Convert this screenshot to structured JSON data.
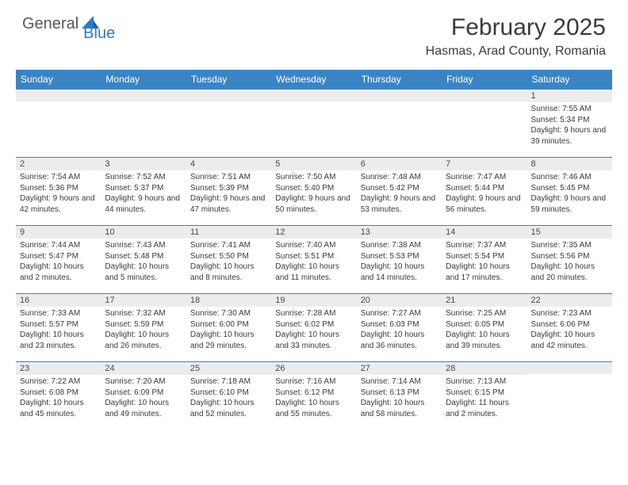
{
  "logo": {
    "text1": "General",
    "text2": "Blue"
  },
  "title": "February 2025",
  "location": "Hasmas, Arad County, Romania",
  "colors": {
    "header_bg": "#3b84c4",
    "header_text": "#ffffff",
    "daynum_bg": "#ececec",
    "border": "#3b84c4",
    "logo_gray": "#575757",
    "logo_blue": "#2f7ac0",
    "body_text": "#3a3a3a"
  },
  "weekdays": [
    "Sunday",
    "Monday",
    "Tuesday",
    "Wednesday",
    "Thursday",
    "Friday",
    "Saturday"
  ],
  "weeks": [
    [
      {
        "day": "",
        "lines": []
      },
      {
        "day": "",
        "lines": []
      },
      {
        "day": "",
        "lines": []
      },
      {
        "day": "",
        "lines": []
      },
      {
        "day": "",
        "lines": []
      },
      {
        "day": "",
        "lines": []
      },
      {
        "day": "1",
        "lines": [
          "Sunrise: 7:55 AM",
          "Sunset: 5:34 PM",
          "Daylight: 9 hours and 39 minutes."
        ]
      }
    ],
    [
      {
        "day": "2",
        "lines": [
          "Sunrise: 7:54 AM",
          "Sunset: 5:36 PM",
          "Daylight: 9 hours and 42 minutes."
        ]
      },
      {
        "day": "3",
        "lines": [
          "Sunrise: 7:52 AM",
          "Sunset: 5:37 PM",
          "Daylight: 9 hours and 44 minutes."
        ]
      },
      {
        "day": "4",
        "lines": [
          "Sunrise: 7:51 AM",
          "Sunset: 5:39 PM",
          "Daylight: 9 hours and 47 minutes."
        ]
      },
      {
        "day": "5",
        "lines": [
          "Sunrise: 7:50 AM",
          "Sunset: 5:40 PM",
          "Daylight: 9 hours and 50 minutes."
        ]
      },
      {
        "day": "6",
        "lines": [
          "Sunrise: 7:48 AM",
          "Sunset: 5:42 PM",
          "Daylight: 9 hours and 53 minutes."
        ]
      },
      {
        "day": "7",
        "lines": [
          "Sunrise: 7:47 AM",
          "Sunset: 5:44 PM",
          "Daylight: 9 hours and 56 minutes."
        ]
      },
      {
        "day": "8",
        "lines": [
          "Sunrise: 7:46 AM",
          "Sunset: 5:45 PM",
          "Daylight: 9 hours and 59 minutes."
        ]
      }
    ],
    [
      {
        "day": "9",
        "lines": [
          "Sunrise: 7:44 AM",
          "Sunset: 5:47 PM",
          "Daylight: 10 hours and 2 minutes."
        ]
      },
      {
        "day": "10",
        "lines": [
          "Sunrise: 7:43 AM",
          "Sunset: 5:48 PM",
          "Daylight: 10 hours and 5 minutes."
        ]
      },
      {
        "day": "11",
        "lines": [
          "Sunrise: 7:41 AM",
          "Sunset: 5:50 PM",
          "Daylight: 10 hours and 8 minutes."
        ]
      },
      {
        "day": "12",
        "lines": [
          "Sunrise: 7:40 AM",
          "Sunset: 5:51 PM",
          "Daylight: 10 hours and 11 minutes."
        ]
      },
      {
        "day": "13",
        "lines": [
          "Sunrise: 7:38 AM",
          "Sunset: 5:53 PM",
          "Daylight: 10 hours and 14 minutes."
        ]
      },
      {
        "day": "14",
        "lines": [
          "Sunrise: 7:37 AM",
          "Sunset: 5:54 PM",
          "Daylight: 10 hours and 17 minutes."
        ]
      },
      {
        "day": "15",
        "lines": [
          "Sunrise: 7:35 AM",
          "Sunset: 5:56 PM",
          "Daylight: 10 hours and 20 minutes."
        ]
      }
    ],
    [
      {
        "day": "16",
        "lines": [
          "Sunrise: 7:33 AM",
          "Sunset: 5:57 PM",
          "Daylight: 10 hours and 23 minutes."
        ]
      },
      {
        "day": "17",
        "lines": [
          "Sunrise: 7:32 AM",
          "Sunset: 5:59 PM",
          "Daylight: 10 hours and 26 minutes."
        ]
      },
      {
        "day": "18",
        "lines": [
          "Sunrise: 7:30 AM",
          "Sunset: 6:00 PM",
          "Daylight: 10 hours and 29 minutes."
        ]
      },
      {
        "day": "19",
        "lines": [
          "Sunrise: 7:28 AM",
          "Sunset: 6:02 PM",
          "Daylight: 10 hours and 33 minutes."
        ]
      },
      {
        "day": "20",
        "lines": [
          "Sunrise: 7:27 AM",
          "Sunset: 6:03 PM",
          "Daylight: 10 hours and 36 minutes."
        ]
      },
      {
        "day": "21",
        "lines": [
          "Sunrise: 7:25 AM",
          "Sunset: 6:05 PM",
          "Daylight: 10 hours and 39 minutes."
        ]
      },
      {
        "day": "22",
        "lines": [
          "Sunrise: 7:23 AM",
          "Sunset: 6:06 PM",
          "Daylight: 10 hours and 42 minutes."
        ]
      }
    ],
    [
      {
        "day": "23",
        "lines": [
          "Sunrise: 7:22 AM",
          "Sunset: 6:08 PM",
          "Daylight: 10 hours and 45 minutes."
        ]
      },
      {
        "day": "24",
        "lines": [
          "Sunrise: 7:20 AM",
          "Sunset: 6:09 PM",
          "Daylight: 10 hours and 49 minutes."
        ]
      },
      {
        "day": "25",
        "lines": [
          "Sunrise: 7:18 AM",
          "Sunset: 6:10 PM",
          "Daylight: 10 hours and 52 minutes."
        ]
      },
      {
        "day": "26",
        "lines": [
          "Sunrise: 7:16 AM",
          "Sunset: 6:12 PM",
          "Daylight: 10 hours and 55 minutes."
        ]
      },
      {
        "day": "27",
        "lines": [
          "Sunrise: 7:14 AM",
          "Sunset: 6:13 PM",
          "Daylight: 10 hours and 58 minutes."
        ]
      },
      {
        "day": "28",
        "lines": [
          "Sunrise: 7:13 AM",
          "Sunset: 6:15 PM",
          "Daylight: 11 hours and 2 minutes."
        ]
      },
      {
        "day": "",
        "lines": []
      }
    ]
  ]
}
